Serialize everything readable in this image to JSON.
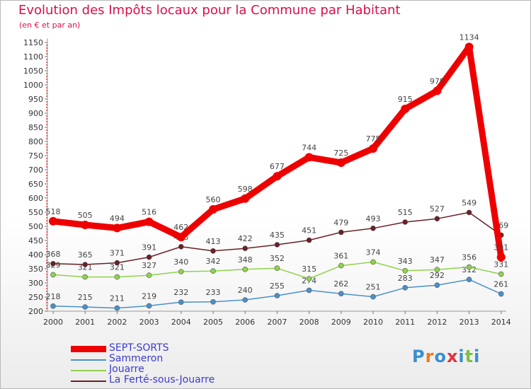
{
  "header": {
    "title": "Evolution des Impôts locaux pour la Commune par Habitant",
    "subtitle": "(en € et par an)"
  },
  "chart_data": {
    "type": "line",
    "title": "Evolution des Impôts locaux pour la Commune par Habitant",
    "ylabel": "(en € et par an)",
    "xlabel": "",
    "ylim": [
      200,
      1150
    ],
    "yticks": [
      200,
      250,
      300,
      350,
      400,
      450,
      500,
      550,
      600,
      650,
      700,
      750,
      800,
      850,
      900,
      950,
      1000,
      1050,
      1100,
      1150
    ],
    "categories": [
      "2000",
      "2001",
      "2002",
      "2003",
      "2004",
      "2005",
      "2006",
      "2007",
      "2008",
      "2009",
      "2010",
      "2011",
      "2012",
      "2013",
      "2014"
    ],
    "grid": false,
    "legend_position": "bottom-left",
    "series": [
      {
        "name": "SEPT-SORTS",
        "color": "#ee0000",
        "values": [
          518,
          505,
          494,
          516,
          462,
          560,
          598,
          677,
          744,
          725,
          775,
          915,
          979,
          1134,
          391
        ]
      },
      {
        "name": "Sammeron",
        "color": "#4a90c8",
        "values": [
          218,
          215,
          211,
          219,
          232,
          233,
          240,
          255,
          274,
          262,
          251,
          283,
          292,
          312,
          261
        ]
      },
      {
        "name": "Jouarre",
        "color": "#8fd24b",
        "values": [
          329,
          321,
          321,
          327,
          340,
          342,
          348,
          352,
          315,
          361,
          374,
          343,
          347,
          356,
          331
        ]
      },
      {
        "name": "La Ferté-sous-Jouarre",
        "color": "#6b1f26",
        "values": [
          368,
          365,
          371,
          391,
          428,
          413,
          422,
          435,
          451,
          479,
          493,
          515,
          527,
          549,
          469
        ]
      }
    ]
  },
  "logo": {
    "text": "Proxiti"
  }
}
